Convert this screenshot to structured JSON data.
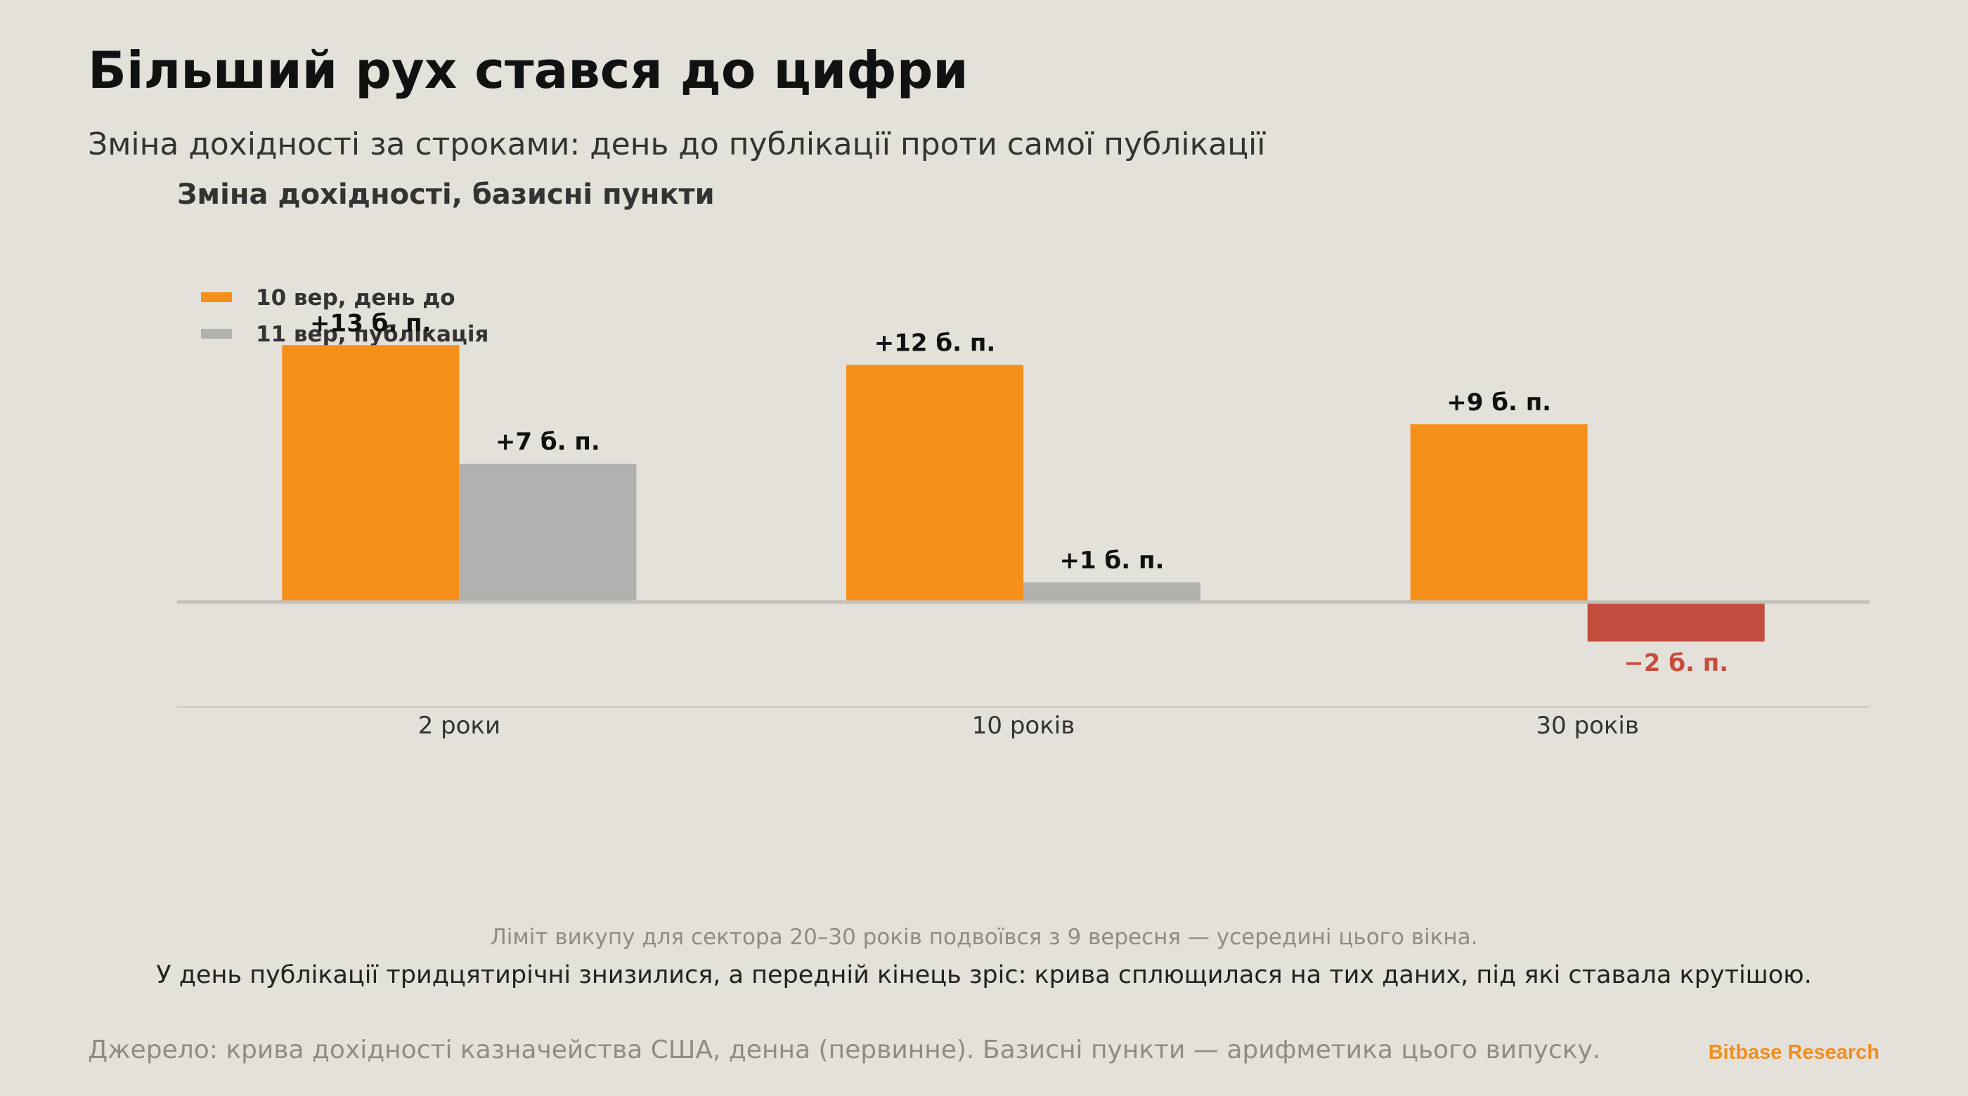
{
  "header": {
    "title": "Більший рух стався до цифри",
    "subtitle": "Зміна дохідності за строками: день до публікації проти самої публікації"
  },
  "chart_data": {
    "type": "bar",
    "title": "Зміна дохідності, базисні пункти",
    "xlabel": "",
    "ylabel": "",
    "categories": [
      "2 роки",
      "10 років",
      "30 років"
    ],
    "series": [
      {
        "name": "10 вер, день до",
        "color": "#f58f1a",
        "values": [
          13,
          12,
          9
        ],
        "labels": [
          "+13 б. п.",
          "+12 б. п.",
          "+9 б. п."
        ]
      },
      {
        "name": "11 вер, публікація",
        "color": "#b2b1af",
        "negative_color": "#c44e3e",
        "values": [
          7,
          1,
          -2
        ],
        "labels": [
          "+7 б. п.",
          "+1 б. п.",
          "−2 б. п."
        ]
      }
    ],
    "ylim": [
      -5.3,
      13.4
    ],
    "legend": "top-left",
    "grid": false
  },
  "notes": {
    "muted": "Ліміт викупу для сектора 20–30 років подвоївся з 9 вересня — усередині цього вікна.",
    "main": "У день публікації тридцятирічні знизилися, а передній кінець зріс: крива сплющилася на тих даних, під які ставала крутішою."
  },
  "footer": {
    "source": "Джерело: крива дохідності казначейства США, денна (первинне). Базисні пункти — арифметика цього випуску.",
    "brand": "Bitbase Research"
  }
}
